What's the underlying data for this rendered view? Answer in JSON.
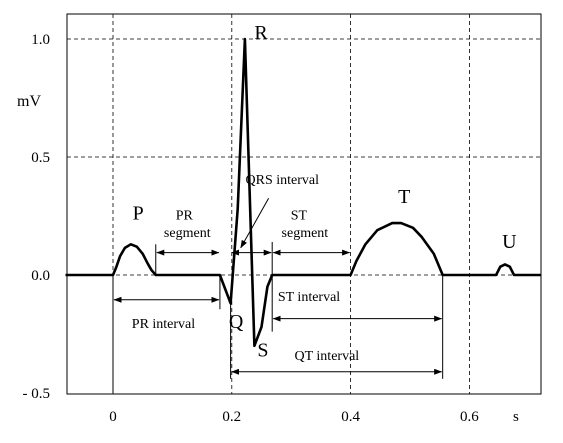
{
  "chart_data": {
    "type": "line",
    "xlabel": "s",
    "ylabel": "mV",
    "xlim": [
      -0.08,
      0.72
    ],
    "ylim": [
      -0.5,
      1.15
    ],
    "x_ticks": [
      {
        "value": 0,
        "label": "0"
      },
      {
        "value": 0.2,
        "label": "0.2"
      },
      {
        "value": 0.4,
        "label": "0.4"
      },
      {
        "value": 0.6,
        "label": "0.6"
      }
    ],
    "y_ticks": [
      {
        "value": 1.0,
        "label": "1.0"
      },
      {
        "value": 0.5,
        "label": "0.5"
      },
      {
        "value": 0.0,
        "label": "0.0"
      },
      {
        "value": -0.5,
        "label": "- 0.5"
      }
    ],
    "grid": "dashed",
    "series": [
      {
        "x": [
          -0.08,
          0.0,
          0.005,
          0.012,
          0.02,
          0.03,
          0.04,
          0.05,
          0.058,
          0.065,
          0.072,
          0.18,
          0.198,
          0.21,
          0.222,
          0.238,
          0.25,
          0.26,
          0.268,
          0.4,
          0.41,
          0.425,
          0.445,
          0.47,
          0.485,
          0.505,
          0.52,
          0.54,
          0.555,
          0.645,
          0.652,
          0.66,
          0.668,
          0.675,
          0.72
        ],
        "y": [
          0.0,
          0.0,
          0.03,
          0.08,
          0.115,
          0.13,
          0.12,
          0.09,
          0.05,
          0.02,
          0.0,
          0.0,
          -0.12,
          0.28,
          1.0,
          -0.3,
          -0.22,
          -0.05,
          0.0,
          0.0,
          0.06,
          0.13,
          0.19,
          0.22,
          0.22,
          0.2,
          0.16,
          0.09,
          0.0,
          0.0,
          0.035,
          0.045,
          0.035,
          0.0,
          0.0
        ]
      }
    ],
    "wave_labels": [
      {
        "text": "P",
        "x": 0.033,
        "y": 0.235
      },
      {
        "text": "Q",
        "x": 0.195,
        "y": -0.225
      },
      {
        "text": "R",
        "x": 0.238,
        "y": 1.0
      },
      {
        "text": "S",
        "x": 0.243,
        "y": -0.345
      },
      {
        "text": "T",
        "x": 0.48,
        "y": 0.305
      },
      {
        "text": "U",
        "x": 0.655,
        "y": 0.115
      }
    ],
    "annotations": [
      {
        "text": "PR",
        "x": 0.12,
        "y": 0.235
      },
      {
        "text": "segment",
        "x": 0.125,
        "y": 0.16
      },
      {
        "text": "QRS interval",
        "x": 0.285,
        "y": 0.385
      },
      {
        "text": "ST",
        "x": 0.313,
        "y": 0.235
      },
      {
        "text": "segment",
        "x": 0.323,
        "y": 0.16
      },
      {
        "text": "PR interval",
        "x": 0.085,
        "y": -0.225
      },
      {
        "text": "ST interval",
        "x": 0.33,
        "y": -0.11
      },
      {
        "text": "QT interval",
        "x": 0.36,
        "y": -0.36
      }
    ],
    "intervals": [
      {
        "name": "PR segment",
        "x0": 0.072,
        "x1": 0.18,
        "y": 0.095
      },
      {
        "name": "QRS interval",
        "x0": 0.198,
        "x1": 0.268,
        "y": 0.095
      },
      {
        "name": "ST segment",
        "x0": 0.268,
        "x1": 0.4,
        "y": 0.095
      },
      {
        "name": "PR interval",
        "x0": 0.0,
        "x1": 0.18,
        "y": -0.105
      },
      {
        "name": "ST interval",
        "x0": 0.268,
        "x1": 0.555,
        "y": -0.185
      },
      {
        "name": "QT interval",
        "x0": 0.198,
        "x1": 0.555,
        "y": -0.41
      }
    ],
    "reference_lines": [
      {
        "x": 0.0,
        "y0": -0.5,
        "y1": 0.0
      },
      {
        "x": 0.072,
        "y0": 0.0,
        "y1": 0.13
      },
      {
        "x": 0.18,
        "y0": -0.145,
        "y1": 0.0
      },
      {
        "x": 0.198,
        "y0": -0.44,
        "y1": -0.12
      },
      {
        "x": 0.268,
        "y0": -0.24,
        "y1": 0.14
      },
      {
        "x": 0.555,
        "y0": -0.44,
        "y1": 0.0
      }
    ]
  }
}
